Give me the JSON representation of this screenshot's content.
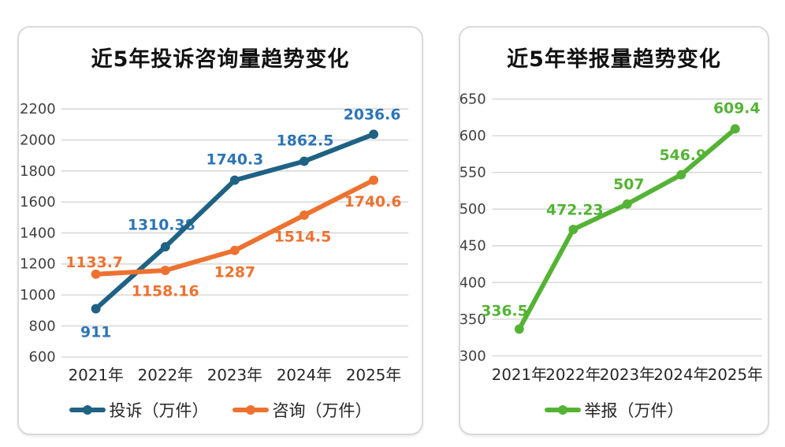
{
  "colors": {
    "grid": "#d9d9d9",
    "tick_label": "#404040",
    "x_label": "#262626",
    "title": "#111111",
    "card_border": "#d9d9d9",
    "background": "#ffffff",
    "complaint_line": "#1f6283",
    "complaint_label": "#2e74b5",
    "consult": "#ed7231",
    "report": "#54b335"
  },
  "chart_data": [
    {
      "type": "line",
      "title": "近5年投诉咨询量趋势变化",
      "categories": [
        "2021年",
        "2022年",
        "2023年",
        "2024年",
        "2025年"
      ],
      "series": [
        {
          "name": "投诉（万件）",
          "values": [
            911,
            1310.38,
            1740.3,
            1862.5,
            2036.6
          ],
          "color": "#1f6283",
          "label_color": "#2e74b5",
          "label_offsets": [
            [
              0,
              29
            ],
            [
              -5,
              -29
            ],
            [
              0,
              -27
            ],
            [
              1,
              -27
            ],
            [
              -2,
              -26
            ]
          ]
        },
        {
          "name": "咨询（万件）",
          "values": [
            1133.7,
            1158.16,
            1287,
            1514.5,
            1740.6
          ],
          "color": "#ed7231",
          "label_color": "#ed7231",
          "label_offsets": [
            [
              -2,
              -16
            ],
            [
              0,
              26
            ],
            [
              0,
              27
            ],
            [
              -2,
              27
            ],
            [
              -1,
              27
            ]
          ]
        }
      ],
      "ylim": [
        600,
        2200
      ],
      "yticks": [
        600,
        800,
        1000,
        1200,
        1400,
        1600,
        1800,
        2000,
        2200
      ],
      "grid": true,
      "legend_position": "bottom"
    },
    {
      "type": "line",
      "title": "近5年举报量趋势变化",
      "categories": [
        "2021年",
        "2022年",
        "2023年",
        "2024年",
        "2025年"
      ],
      "series": [
        {
          "name": "举报（万件）",
          "values": [
            336.5,
            472.23,
            507,
            546.9,
            609.4
          ],
          "color": "#54b335",
          "label_color": "#54b335",
          "label_offsets": [
            [
              -19,
              -24
            ],
            [
              2,
              -26
            ],
            [
              2,
              -26
            ],
            [
              2,
              -26
            ],
            [
              2,
              -27
            ]
          ]
        }
      ],
      "ylim": [
        300,
        650
      ],
      "yticks": [
        300,
        350,
        400,
        450,
        500,
        550,
        600,
        650
      ],
      "grid": true,
      "legend_position": "bottom"
    }
  ]
}
